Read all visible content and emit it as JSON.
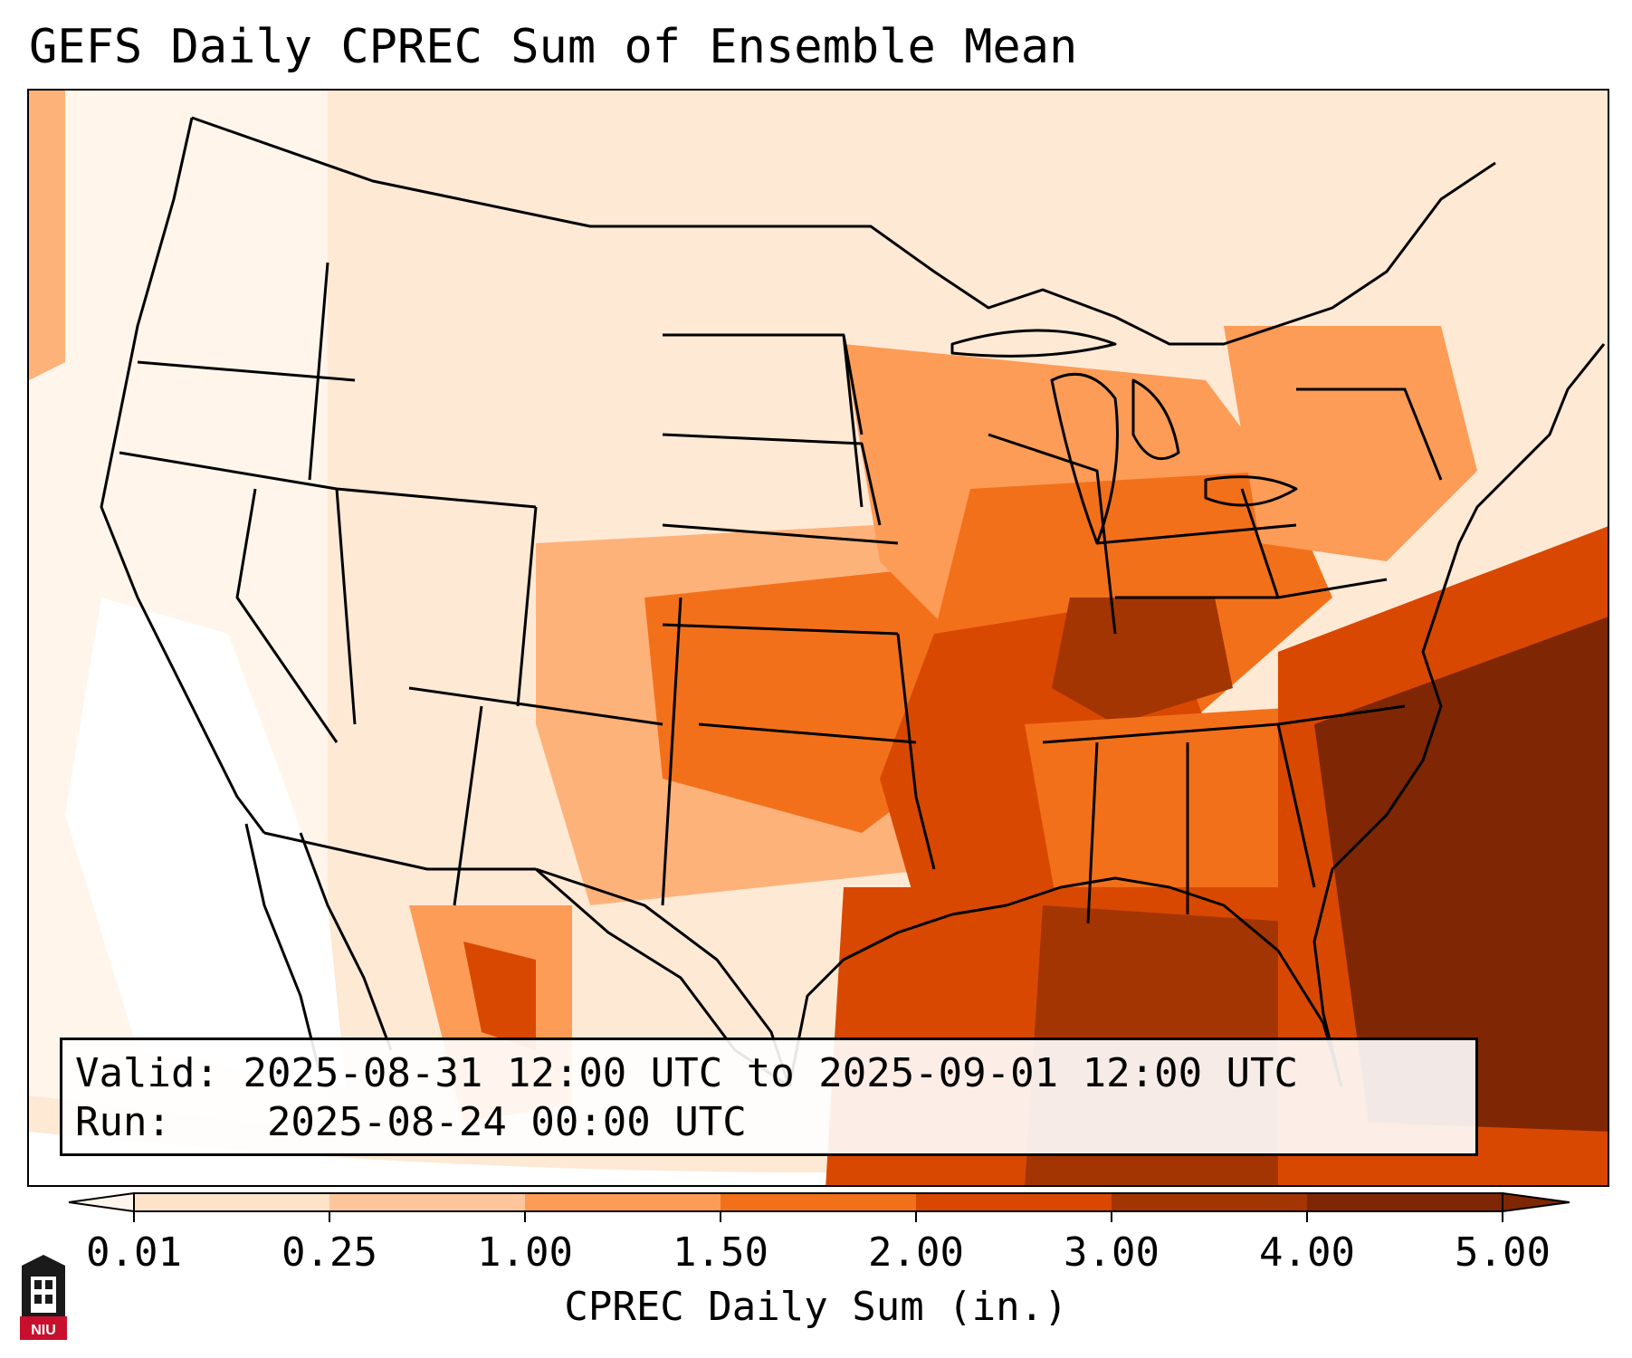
{
  "title": "GEFS Daily CPREC Sum of Ensemble Mean",
  "info": {
    "valid_label": "Valid:",
    "valid_value": "2025-08-31 12:00 UTC to 2025-09-01 12:00 UTC",
    "run_label": "Run:",
    "run_value": "2025-08-24 00:00 UTC"
  },
  "colorbar": {
    "label": "CPREC Daily Sum (in.)",
    "ticks": [
      "0.01",
      "0.25",
      "1.00",
      "1.50",
      "2.00",
      "3.00",
      "4.00",
      "5.00"
    ],
    "colors": [
      "#fff5eb",
      "#fde3c8",
      "#fdc69a",
      "#fd9c57",
      "#f3701b",
      "#d94801",
      "#a33503",
      "#7f2704"
    ],
    "extend": "both"
  },
  "map": {
    "region": "Contiguous United States",
    "ocean_color": "#ffffff",
    "border_color": "#000000"
  },
  "logo": {
    "text": "NIU",
    "icon": "niu-logo-icon"
  }
}
